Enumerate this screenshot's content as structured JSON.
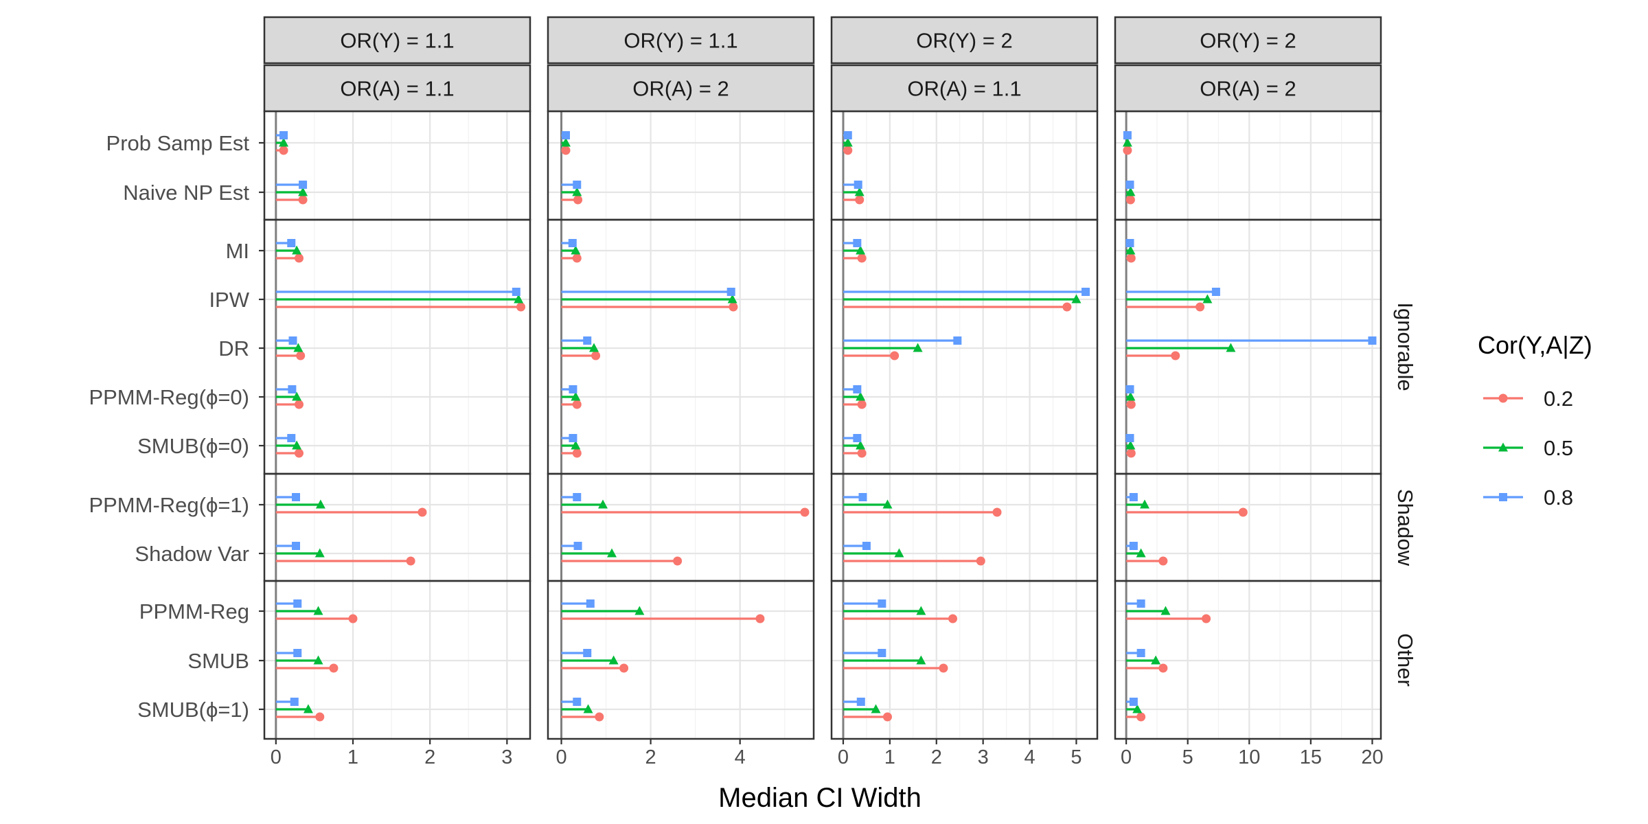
{
  "chart_data": {
    "type": "bar",
    "x_axis_title": "Median CI Width",
    "legend": {
      "title": "Cor(Y,A|Z)",
      "placement": "right",
      "entries": [
        "0.2",
        "0.5",
        "0.8"
      ]
    },
    "colors": {
      "0.2": "#F8766D",
      "0.5": "#00BA38",
      "0.8": "#619CFF"
    },
    "groups": [
      {
        "name": "",
        "methods": [
          "Prob Samp Est",
          "Naive NP Est"
        ]
      },
      {
        "name": "Ignorable",
        "methods": [
          "MI",
          "IPW",
          "DR",
          "PPMM-Reg(ϕ=0)",
          "SMUB(ϕ=0)"
        ]
      },
      {
        "name": "Shadow",
        "methods": [
          "PPMM-Reg(ϕ=1)",
          "Shadow Var"
        ]
      },
      {
        "name": "Other",
        "methods": [
          "PPMM-Reg",
          "SMUB",
          "SMUB(ϕ=1)"
        ]
      }
    ],
    "panels": [
      {
        "or_y": "OR(Y) = 1.1",
        "or_a": "OR(A) = 1.1",
        "xlim": [
          -0.15,
          3.3
        ],
        "ticks": [
          0,
          1,
          2,
          3
        ],
        "values": {
          "0.2": [
            0.1,
            0.35,
            0.3,
            3.18,
            0.32,
            0.3,
            0.3,
            1.9,
            1.75,
            1.0,
            0.75,
            0.57
          ],
          "0.5": [
            0.1,
            0.35,
            0.27,
            3.15,
            0.29,
            0.27,
            0.27,
            0.58,
            0.57,
            0.55,
            0.55,
            0.42
          ],
          "0.8": [
            0.1,
            0.35,
            0.2,
            3.12,
            0.22,
            0.21,
            0.2,
            0.26,
            0.26,
            0.28,
            0.28,
            0.24
          ]
        }
      },
      {
        "or_y": "OR(Y) = 1.1",
        "or_a": "OR(A) = 2",
        "xlim": [
          -0.3,
          5.65
        ],
        "ticks": [
          0,
          2,
          4
        ],
        "values": {
          "0.2": [
            0.1,
            0.37,
            0.35,
            3.85,
            0.77,
            0.35,
            0.35,
            5.45,
            2.6,
            4.45,
            1.4,
            0.85
          ],
          "0.5": [
            0.1,
            0.35,
            0.32,
            3.83,
            0.73,
            0.32,
            0.32,
            0.93,
            1.13,
            1.75,
            1.17,
            0.6
          ],
          "0.8": [
            0.1,
            0.35,
            0.25,
            3.8,
            0.58,
            0.26,
            0.26,
            0.35,
            0.37,
            0.65,
            0.58,
            0.35
          ]
        }
      },
      {
        "or_y": "OR(Y) = 2",
        "or_a": "OR(A) = 1.1",
        "xlim": [
          -0.25,
          5.45
        ],
        "ticks": [
          0,
          1,
          2,
          3,
          4,
          5
        ],
        "values": {
          "0.2": [
            0.1,
            0.35,
            0.4,
            4.8,
            1.1,
            0.4,
            0.4,
            3.3,
            2.95,
            2.35,
            2.15,
            0.95
          ],
          "0.5": [
            0.1,
            0.35,
            0.37,
            5.0,
            1.6,
            0.37,
            0.37,
            0.95,
            1.2,
            1.67,
            1.67,
            0.7
          ],
          "0.8": [
            0.1,
            0.32,
            0.3,
            5.2,
            2.45,
            0.3,
            0.3,
            0.42,
            0.5,
            0.83,
            0.83,
            0.38
          ]
        }
      },
      {
        "or_y": "OR(Y) = 2",
        "or_a": "OR(A) = 2",
        "xlim": [
          -0.9,
          20.7
        ],
        "ticks": [
          0,
          5,
          10,
          15,
          20
        ],
        "values": {
          "0.2": [
            0.1,
            0.35,
            0.4,
            6.0,
            4.0,
            0.4,
            0.4,
            9.5,
            3.0,
            6.5,
            3.0,
            1.2
          ],
          "0.5": [
            0.1,
            0.35,
            0.35,
            6.6,
            8.5,
            0.35,
            0.35,
            1.5,
            1.2,
            3.2,
            2.4,
            0.9
          ],
          "0.8": [
            0.1,
            0.3,
            0.3,
            7.3,
            20.0,
            0.3,
            0.3,
            0.6,
            0.6,
            1.2,
            1.2,
            0.6
          ]
        }
      }
    ]
  }
}
